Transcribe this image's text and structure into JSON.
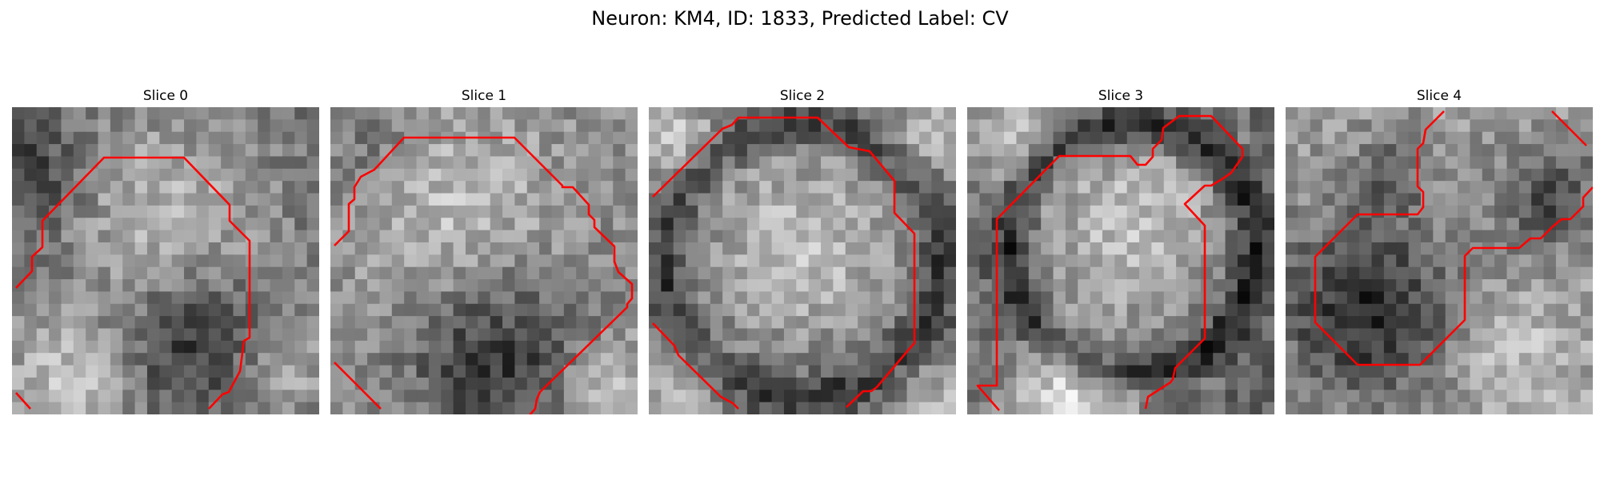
{
  "figure": {
    "suptitle": "Neuron: KM4, ID: 1833, Predicted Label: CV"
  },
  "panels": [
    {
      "title": "Slice 0"
    },
    {
      "title": "Slice 1"
    },
    {
      "title": "Slice 2"
    },
    {
      "title": "Slice 3"
    },
    {
      "title": "Slice 4"
    }
  ],
  "style": {
    "contour_color": "#ff0000",
    "colormap": "grayscale"
  }
}
